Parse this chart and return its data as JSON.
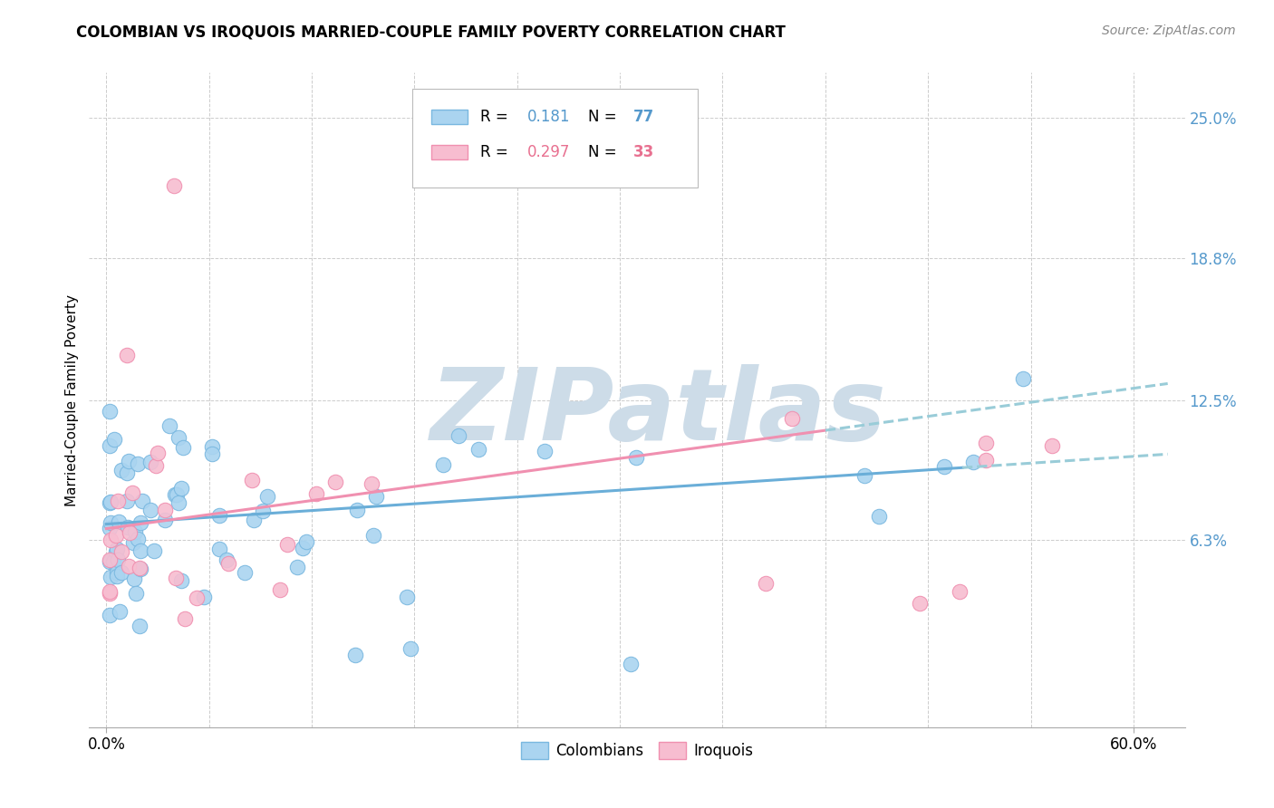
{
  "title": "COLOMBIAN VS IROQUOIS MARRIED-COUPLE FAMILY POVERTY CORRELATION CHART",
  "source": "Source: ZipAtlas.com",
  "xlabel_vals": [
    0,
    60
  ],
  "xlabel_labels": [
    "0.0%",
    "60.0%"
  ],
  "ylabel": "Married-Couple Family Poverty",
  "ylabel_ticks_right": [
    "6.3%",
    "12.5%",
    "18.8%",
    "25.0%"
  ],
  "ylabel_vals_right": [
    6.3,
    12.5,
    18.8,
    25.0
  ],
  "ylim": [
    -2,
    27
  ],
  "xlim": [
    -1,
    63
  ],
  "colombians_R": "0.181",
  "colombians_N": "77",
  "iroquois_R": "0.297",
  "iroquois_N": "33",
  "colombian_color": "#aad4f0",
  "iroquois_color": "#f7bdd0",
  "colombian_edge_color": "#7ab8e0",
  "iroquois_edge_color": "#f090b0",
  "colombian_line_color": "#6aaed8",
  "iroquois_line_color": "#f090b0",
  "trendline_ext_color": "#99ccd8",
  "watermark_color": "#cddce8",
  "watermark_text": "ZIPatlas",
  "right_tick_color": "#5599cc",
  "legend_R_col_color": "#5599cc",
  "legend_N_col_color": "#5599cc",
  "legend_R_iro_color": "#e87090",
  "legend_N_iro_color": "#e87090"
}
